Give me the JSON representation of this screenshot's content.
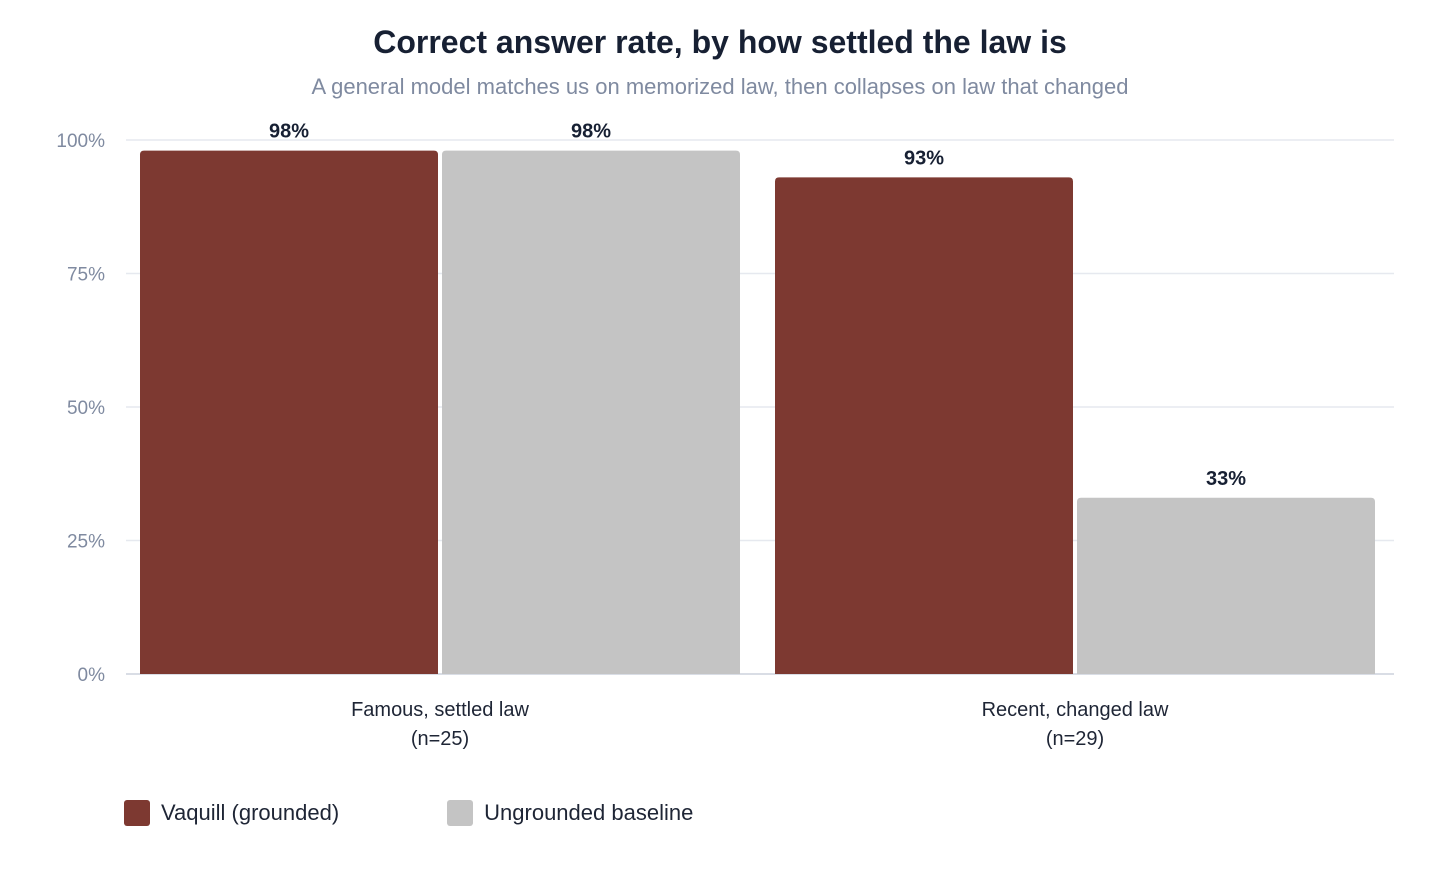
{
  "chart_data": {
    "type": "bar",
    "title": "Correct answer rate, by how settled the law is",
    "subtitle": "A general model matches us on memorized law, then collapses on law that changed",
    "categories": [
      [
        "Famous, settled law",
        "(n=25)"
      ],
      [
        "Recent, changed law",
        "(n=29)"
      ]
    ],
    "series": [
      {
        "name": "Vaquill (grounded)",
        "values": [
          98,
          93
        ],
        "color": "#7d3931"
      },
      {
        "name": "Ungrounded baseline",
        "values": [
          98,
          33
        ],
        "color": "#c4c4c4"
      }
    ],
    "value_labels": [
      [
        "98%",
        "93%"
      ],
      [
        "98%",
        "33%"
      ]
    ],
    "ylim": [
      0,
      100
    ],
    "yticks": [
      0,
      25,
      50,
      75,
      100
    ],
    "ytick_labels": [
      "0%",
      "25%",
      "50%",
      "75%",
      "100%"
    ],
    "grid": true,
    "legend_position": "bottom-left"
  }
}
